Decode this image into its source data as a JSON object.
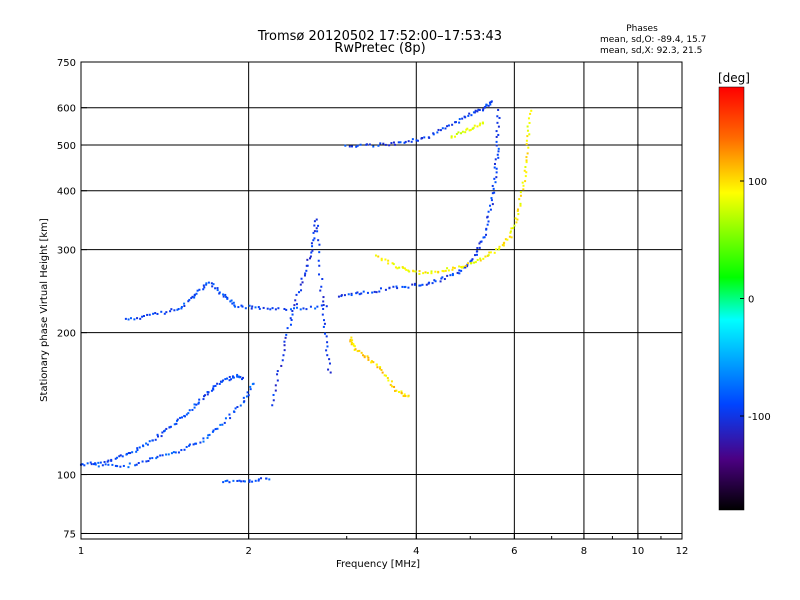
{
  "chart_data": {
    "type": "scatter",
    "title": "Tromsø 20120502 17:52:00–17:53:43",
    "subtitle": "RwPretec (8p)",
    "xlabel": "Frequency [MHz]",
    "ylabel": "Stationary phase Virtual Height [km]",
    "x_scale": "log",
    "y_scale": "log",
    "xlim": [
      1,
      12
    ],
    "ylim": [
      73,
      750
    ],
    "x_ticks": [
      1,
      2,
      4,
      6,
      8,
      10,
      12
    ],
    "y_ticks": [
      75,
      100,
      200,
      300,
      400,
      500,
      600,
      750
    ],
    "x_tick_labels": [
      "1",
      "2",
      "4",
      "6",
      "8",
      "10",
      "12"
    ],
    "y_tick_labels": [
      "75",
      "100",
      "200",
      "300",
      "400",
      "500",
      "600",
      "750"
    ],
    "grid": true,
    "phases_box": {
      "title": "Phases",
      "line1": "mean, sd,O: -89.4, 15.7",
      "line2": "mean, sd,X:  92.3, 21.5"
    },
    "colorbar": {
      "label": "[deg]",
      "range": [
        -180,
        180
      ],
      "ticks": [
        100,
        0,
        -100
      ],
      "tick_labels": [
        "100",
        "0",
        "-100"
      ]
    },
    "traces": [
      {
        "kind": "O-mode E layer",
        "phase": -90,
        "points": [
          [
            1.0,
            105
          ],
          [
            1.1,
            106
          ],
          [
            1.2,
            110
          ],
          [
            1.3,
            115
          ],
          [
            1.4,
            122
          ],
          [
            1.5,
            130
          ],
          [
            1.6,
            140
          ],
          [
            1.7,
            150
          ],
          [
            1.8,
            158
          ],
          [
            1.9,
            162
          ],
          [
            1.95,
            160
          ]
        ]
      },
      {
        "kind": "O-mode E2 trace",
        "phase": -85,
        "points": [
          [
            1.05,
            105
          ],
          [
            1.2,
            104
          ],
          [
            1.35,
            108
          ],
          [
            1.5,
            112
          ],
          [
            1.65,
            118
          ],
          [
            1.8,
            128
          ],
          [
            1.95,
            142
          ],
          [
            2.05,
            158
          ]
        ]
      },
      {
        "kind": "O-mode F1 low",
        "phase": -90,
        "points": [
          [
            1.2,
            213
          ],
          [
            1.35,
            218
          ],
          [
            1.5,
            225
          ],
          [
            1.6,
            240
          ],
          [
            1.7,
            255
          ],
          [
            1.8,
            240
          ],
          [
            1.9,
            228
          ],
          [
            2.1,
            225
          ],
          [
            2.4,
            224
          ],
          [
            2.8,
            228
          ]
        ]
      },
      {
        "kind": "O-mode F2 trace",
        "phase": -95,
        "points": [
          [
            2.9,
            240
          ],
          [
            3.2,
            243
          ],
          [
            3.6,
            248
          ],
          [
            4.0,
            252
          ],
          [
            4.4,
            258
          ],
          [
            4.8,
            270
          ],
          [
            5.1,
            290
          ],
          [
            5.3,
            320
          ],
          [
            5.45,
            370
          ],
          [
            5.55,
            430
          ],
          [
            5.6,
            500
          ],
          [
            5.62,
            600
          ]
        ]
      },
      {
        "kind": "O-mode F2 multiple",
        "phase": -95,
        "points": [
          [
            3.0,
            495
          ],
          [
            3.4,
            500
          ],
          [
            3.8,
            505
          ],
          [
            4.2,
            520
          ],
          [
            4.6,
            550
          ],
          [
            5.0,
            580
          ],
          [
            5.3,
            600
          ],
          [
            5.5,
            620
          ]
        ]
      },
      {
        "kind": "X-mode F2 trace",
        "phase": 100,
        "points": [
          [
            3.4,
            290
          ],
          [
            3.7,
            275
          ],
          [
            4.0,
            268
          ],
          [
            4.4,
            270
          ],
          [
            4.8,
            275
          ],
          [
            5.2,
            285
          ],
          [
            5.6,
            300
          ],
          [
            5.9,
            320
          ],
          [
            6.1,
            360
          ],
          [
            6.25,
            420
          ],
          [
            6.35,
            500
          ],
          [
            6.4,
            600
          ]
        ]
      },
      {
        "kind": "X-mode F1 band",
        "phase": 110,
        "points": [
          [
            3.05,
            195
          ],
          [
            3.1,
            185
          ],
          [
            3.3,
            175
          ],
          [
            3.5,
            165
          ],
          [
            3.7,
            150
          ],
          [
            3.9,
            145
          ]
        ]
      },
      {
        "kind": "X-mode F2 multiple",
        "phase": 90,
        "points": [
          [
            4.6,
            520
          ],
          [
            5.0,
            540
          ],
          [
            5.3,
            560
          ]
        ]
      },
      {
        "kind": "O-mode spread F",
        "phase": -100,
        "points": [
          [
            2.2,
            140
          ],
          [
            2.3,
            180
          ],
          [
            2.4,
            220
          ],
          [
            2.5,
            260
          ],
          [
            2.6,
            300
          ],
          [
            2.65,
            350
          ],
          [
            2.7,
            250
          ],
          [
            2.75,
            200
          ],
          [
            2.8,
            160
          ]
        ]
      },
      {
        "kind": "E sporadic",
        "phase": -90,
        "points": [
          [
            1.8,
            97
          ],
          [
            2.0,
            97
          ],
          [
            2.2,
            98
          ]
        ]
      }
    ]
  }
}
